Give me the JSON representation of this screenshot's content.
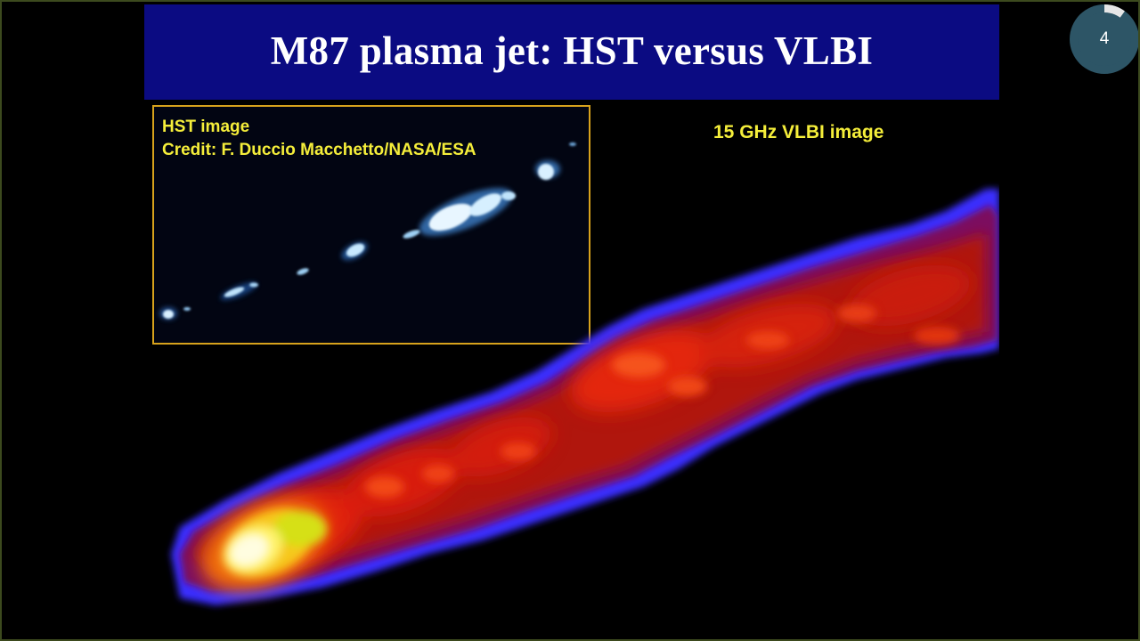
{
  "slide": {
    "title": "M87 plasma jet: HST versus VLBI",
    "hst_panel": {
      "label_line1": "HST image",
      "label_line2": "Credit: F. Duccio Macchetto/NASA/ESA"
    },
    "vlbi_label": "15 GHz VLBI image"
  },
  "counter": {
    "slide_number": "4",
    "progress": 0.1
  },
  "colors": {
    "title_bar": "#0b0b82",
    "title_text": "#ffffff",
    "label_text": "#f5ee3a",
    "hst_border": "#d7a21c",
    "counter_bg": "#2d5566",
    "counter_arc": "#e6e6e6"
  }
}
